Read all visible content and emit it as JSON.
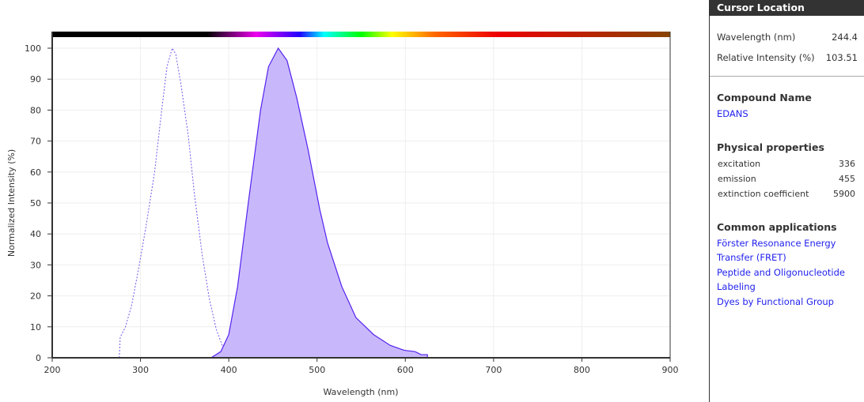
{
  "chart_data": {
    "type": "area",
    "xlabel": "Wavelength (nm)",
    "ylabel": "Normalized Intensity (%)",
    "xlim": [
      200,
      900
    ],
    "ylim": [
      0,
      100
    ],
    "xticks": [
      200,
      300,
      400,
      500,
      600,
      700,
      800,
      900
    ],
    "yticks": [
      0,
      10,
      20,
      30,
      40,
      50,
      60,
      70,
      80,
      90,
      100
    ],
    "grid": true,
    "series": [
      {
        "style": "dotted-line",
        "color": "#7755ee",
        "x": [
          276,
          277,
          283,
          290,
          298,
          306,
          316,
          324,
          330,
          336,
          340,
          346,
          354,
          361,
          370,
          378,
          386,
          394,
          410
        ],
        "y": [
          0,
          6.6,
          10,
          17,
          29,
          42,
          60,
          80,
          94,
          100,
          98,
          88,
          72,
          53,
          33,
          19,
          9,
          3,
          0
        ]
      },
      {
        "style": "filled-area",
        "color": "#5522ee",
        "fill": "#c8b8fb",
        "x": [
          380,
          391,
          400,
          410,
          423,
          436,
          445,
          456,
          466,
          477,
          490,
          503,
          512,
          528,
          544,
          564,
          583,
          599,
          611,
          618,
          625,
          625
        ],
        "y": [
          0,
          2,
          7.5,
          23,
          52,
          80,
          94,
          100,
          96,
          84,
          67,
          48,
          37,
          23,
          13,
          7.5,
          4,
          2.4,
          2,
          1,
          1,
          0
        ]
      }
    ]
  },
  "side": {
    "cursor_title": "Cursor Location",
    "wl_label": "Wavelength (nm)",
    "wl_value": "244.4",
    "ri_label": "Relative Intensity (%)",
    "ri_value": "103.51",
    "compound_title": "Compound Name",
    "compound": "EDANS",
    "phys_title": "Physical properties",
    "props": [
      {
        "k": "excitation",
        "v": "336"
      },
      {
        "k": "emission",
        "v": "455"
      },
      {
        "k": "extinction coefficient",
        "v": "5900"
      }
    ],
    "apps_title": "Common applications",
    "apps": [
      "Förster Resonance Energy Transfer (FRET)",
      "Peptide and Oligonucleotide Labeling",
      "Dyes by Functional Group"
    ]
  }
}
